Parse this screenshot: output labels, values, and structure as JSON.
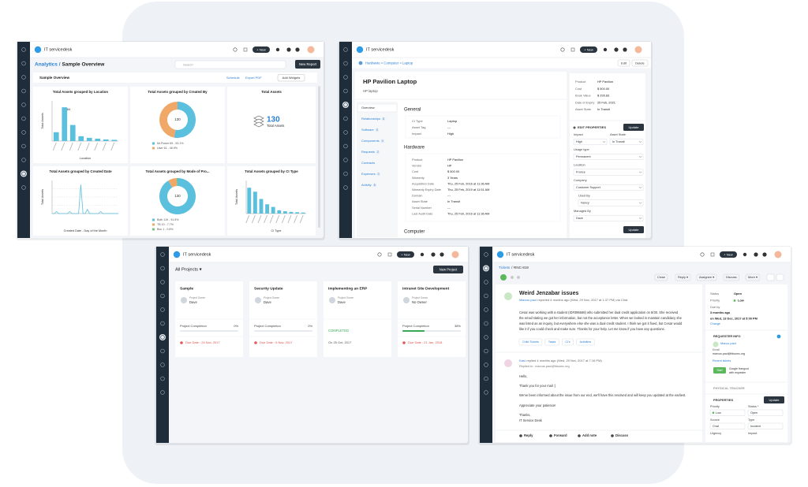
{
  "app_name": "IT servicedesk",
  "new_button": "+ New",
  "windows": {
    "analytics": {
      "breadcrumb_root": "Analytics /",
      "breadcrumb_page": "Sample Overview",
      "search_placeholder": "Search",
      "new_report": "New Report",
      "dashboard_name": "Sample Overview",
      "schedule": "Schedule",
      "export": "Export PDF",
      "add_widgets": "Add Widgets",
      "widgets": [
        {
          "type": "bar",
          "title": "Total Assets grouped by Location",
          "y_label": "Total Assets",
          "x_label": "Location",
          "values": [
            22,
            84,
            40,
            12,
            8,
            6,
            4,
            3
          ],
          "ylim": [
            0,
            100
          ],
          "color": "#5bc0de"
        },
        {
          "type": "pie",
          "title": "Total Assets grouped by Created By",
          "center_label": 130,
          "values": [
            53.1,
            46.9
          ],
          "colors": [
            "#5bc0de",
            "#f0a868"
          ],
          "legend": [
            "Mr.Power  69 - 53.1%",
            "User  61 - 46.9%"
          ]
        },
        {
          "type": "kpi",
          "title": "Total Assets",
          "value": 130,
          "label": "Total Assets"
        },
        {
          "type": "line",
          "title": "Total Assets grouped by Created Date",
          "y_label": "Total Assets",
          "x_label": "Created Date - Day of the Month",
          "values": [
            0,
            0,
            1,
            0,
            0,
            0,
            0,
            0,
            1,
            0,
            0,
            0,
            0,
            14,
            0,
            0,
            2,
            0,
            0,
            0,
            0,
            0,
            1,
            0,
            0,
            0,
            0,
            0,
            0,
            0,
            0
          ],
          "ylim": [
            0,
            16
          ],
          "color": "#5bc0de"
        },
        {
          "type": "pie",
          "title": "Total Assets grouped by Mode of Pro...",
          "center_label": 130,
          "values": [
            91.5,
            7.7,
            0.8
          ],
          "colors": [
            "#5bc0de",
            "#f0a868",
            "#7cc47c"
          ],
          "legend": [
            "Both  119 - 91.5%",
            "TB  10 - 7.7%",
            "Buc  1 - 0.8%"
          ]
        },
        {
          "type": "bar",
          "title": "Total Assets grouped by CI Type",
          "y_label": "Total Assets",
          "x_label": "CI Type",
          "values": [
            78,
            66,
            44,
            28,
            20,
            10,
            7,
            5,
            4,
            3
          ],
          "ylim": [
            0,
            100
          ],
          "color": "#5bc0de"
        }
      ]
    },
    "asset": {
      "breadcrumb": "Hardware » Computer » Laptop",
      "edit": "Edit",
      "delete": "Delete",
      "title": "HP Pavilion Laptop",
      "subtitle": "HP laptop",
      "nav": [
        {
          "label": "Overview"
        },
        {
          "label": "Relationships",
          "count": 8
        },
        {
          "label": "Software",
          "count": 0
        },
        {
          "label": "Components",
          "count": 0
        },
        {
          "label": "Requests",
          "count": 2
        },
        {
          "label": "Contracts"
        },
        {
          "label": "Expenses",
          "count": 0
        },
        {
          "label": "Activity",
          "count": 8
        }
      ],
      "general_heading": "General",
      "general": [
        [
          "CI Type",
          "Laptop"
        ],
        [
          "Asset Tag",
          "---"
        ],
        [
          "Impact",
          "High"
        ]
      ],
      "hardware_heading": "Hardware",
      "hardware": [
        [
          "Product",
          "HP Pavilion"
        ],
        [
          "Vendor",
          "HP"
        ],
        [
          "Cost",
          "$ 500.00"
        ],
        [
          "Warranty",
          "3 Years"
        ],
        [
          "Acquisition Date",
          "Thu, 25 Feb, 2016 at 11:36 AM"
        ],
        [
          "Warranty Expiry Date",
          "Thu, 25 Feb, 2019 at 11:51 AM"
        ],
        [
          "Domain",
          "---"
        ],
        [
          "Asset State",
          "In Transit"
        ],
        [
          "Serial Number",
          "---"
        ],
        [
          "Last Audit Date",
          "Thu, 25 Feb, 2016 at 11:36 AM"
        ]
      ],
      "computer_heading": "Computer",
      "summary": [
        [
          "Product",
          "HP Pavilion"
        ],
        [
          "Cost",
          "$ 500.00"
        ],
        [
          "Book Value",
          "$ 295.83"
        ],
        [
          "Date of Expiry",
          "25 Feb, 2021"
        ],
        [
          "Asset State",
          "In Transit"
        ]
      ],
      "edit_heading": "EDIT PROPERTIES",
      "update": "Update",
      "fields": [
        {
          "label": "Impact",
          "value": "High"
        },
        {
          "label": "Asset State",
          "value": "In Transit"
        },
        {
          "label": "Usage type",
          "value": "Permanent"
        },
        {
          "label": "Location",
          "value": "France"
        },
        {
          "label": "Company",
          "value": "Customer Support"
        },
        {
          "label": "Used By",
          "value": "Nancy"
        },
        {
          "label": "Managed By",
          "value": "Dave"
        }
      ]
    },
    "projects": {
      "title": "All Projects ▾",
      "new": "New Project",
      "owner_label": "Project Owner",
      "completion_label": "Project Completion",
      "items": [
        {
          "name": "Sample",
          "owner": "Dave",
          "completion": 0,
          "completion_text": "0%",
          "due": "Due Date : 24 Nov, 2017"
        },
        {
          "name": "Security Update",
          "owner": "Dave",
          "completion": 0,
          "completion_text": "0%",
          "due": "Due Date : 5 Nov, 2017"
        },
        {
          "name": "Implementing an ERP",
          "owner": "Dave",
          "status": "COMPLETED",
          "completed_on": "On 25 Oct, 2017"
        },
        {
          "name": "Intranet Site Development",
          "owner": "No Owner",
          "completion": 38,
          "completion_text": "38%",
          "due": "Due Date : 21 Jan, 2018"
        }
      ]
    },
    "ticket": {
      "breadcrumb_root": "Tickets",
      "breadcrumb_id": "/ #INC-819",
      "actions": [
        "Close",
        "Reply ▾",
        "Assignee ▾",
        "Discuss",
        "More ▾"
      ],
      "title": "Weird Jenzabar issues",
      "reporter": "Marcus paul",
      "reported": "reported 4 months ago (Wed, 29 Nov, 2017 at 1:37 PM) via Chat",
      "body": [
        "Cesar was working with a student (ID#395668) who submitted her dual credit application on 8/30. She received",
        "the email stating we got her information, but not the acceptance letter. When we looked in maintain candidacy she",
        "was listed as an inquiry, but everywhere else she was a dual credit student. I think we got it fixed, but Cesar would",
        "like it if you could check and make sure. Thanks for your help. Let me know if you have any questions."
      ],
      "tabs": [
        "Child Tickets",
        "Tasks",
        "CI's",
        "Activities"
      ],
      "reply_author": "Kasi",
      "reply_meta": "replied 4 months ago (Wed, 29 Nov, 2017 at 7:16 PM)",
      "replied_to": "Replied to : marcus.paul@fdsumc.org",
      "reply_body": [
        "Hello,",
        "Thank you for your mail :)",
        "We've been informed about the issue from our end, we'll have this resolved and will keep you updated at the earliest.",
        "Appreciate your patience!",
        "Thanks,",
        "IT Service Desk"
      ],
      "footer_actions": [
        "Reply",
        "Forward",
        "Add note",
        "Discuss"
      ],
      "status": [
        [
          "Status",
          "Open"
        ],
        [
          "Priority",
          "Low"
        ],
        [
          "Due by",
          "3 months ago"
        ]
      ],
      "due_detail": "on Wed, 13 Dec, 2017 at 5:00 PM",
      "change": "Change",
      "requester_heading": "REQUESTER INFO",
      "requester": "Marcu paul",
      "email_label": "Email",
      "email": "marcus.paul@fdsumc.org",
      "recent": "Recent tickets",
      "hangout_button": "Start",
      "hangout": [
        "Google Hangout",
        "with requester"
      ],
      "tracker_heading": "PHYSICAL TRACKER",
      "properties_heading": "PROPERTIES",
      "update": "Update",
      "properties": [
        {
          "label": "Priority",
          "value": "Low"
        },
        {
          "label": "Status *",
          "value": "Open"
        },
        {
          "label": "Source",
          "value": "Chat"
        },
        {
          "label": "Type",
          "value": "Incident"
        },
        {
          "label": "Urgency"
        },
        {
          "label": "Impact"
        }
      ]
    }
  }
}
